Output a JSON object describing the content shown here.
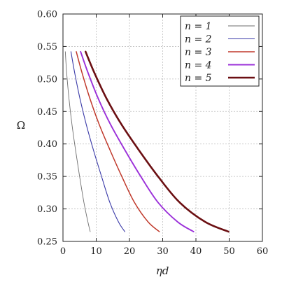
{
  "chart_data": {
    "type": "line",
    "title": "",
    "xlabel": "ηd",
    "ylabel": "Ω",
    "xlim": [
      0,
      60
    ],
    "ylim": [
      0.25,
      0.6
    ],
    "xticks": [
      0,
      10,
      20,
      30,
      40,
      50,
      60
    ],
    "xtick_labels": [
      "0",
      "10",
      "20",
      "30",
      "40",
      "50",
      "60"
    ],
    "yticks": [
      0.25,
      0.3,
      0.35,
      0.4,
      0.45,
      0.5,
      0.55,
      0.6
    ],
    "ytick_labels": [
      "0.25",
      "0.30",
      "0.35",
      "0.40",
      "0.45",
      "0.50",
      "0.55",
      "0.60"
    ],
    "grid": true,
    "legend_position": "top-right",
    "series": [
      {
        "name": "n = 1",
        "color": "#6e6e6e",
        "x": [
          0.7,
          1.1,
          1.8,
          2.7,
          3.8,
          5.0,
          6.3,
          7.5,
          8.2
        ],
        "y": [
          0.542,
          0.51,
          0.47,
          0.43,
          0.39,
          0.35,
          0.31,
          0.28,
          0.265
        ]
      },
      {
        "name": "n = 2",
        "color": "#3a3aa8",
        "x": [
          2.4,
          3.5,
          5.1,
          7.0,
          9.2,
          11.6,
          14.1,
          16.7,
          18.6
        ],
        "y": [
          0.542,
          0.51,
          0.47,
          0.43,
          0.39,
          0.35,
          0.31,
          0.28,
          0.265
        ]
      },
      {
        "name": "n = 3",
        "color": "#c0392b",
        "x": [
          4.0,
          5.7,
          8.1,
          10.9,
          14.2,
          17.7,
          21.5,
          25.6,
          29.0
        ],
        "y": [
          0.542,
          0.51,
          0.47,
          0.43,
          0.39,
          0.35,
          0.31,
          0.28,
          0.265
        ]
      },
      {
        "name": "n = 4",
        "color": "#9b30d9",
        "x": [
          5.3,
          7.5,
          10.6,
          14.3,
          18.7,
          23.4,
          28.6,
          34.5,
          39.3
        ],
        "y": [
          0.542,
          0.51,
          0.47,
          0.43,
          0.39,
          0.35,
          0.31,
          0.28,
          0.265
        ]
      },
      {
        "name": "n = 5",
        "color": "#6b0f12",
        "x": [
          6.8,
          9.4,
          13.1,
          17.6,
          22.9,
          28.6,
          35.1,
          42.8,
          49.8
        ],
        "y": [
          0.542,
          0.51,
          0.47,
          0.43,
          0.39,
          0.35,
          0.31,
          0.28,
          0.265
        ]
      }
    ]
  }
}
